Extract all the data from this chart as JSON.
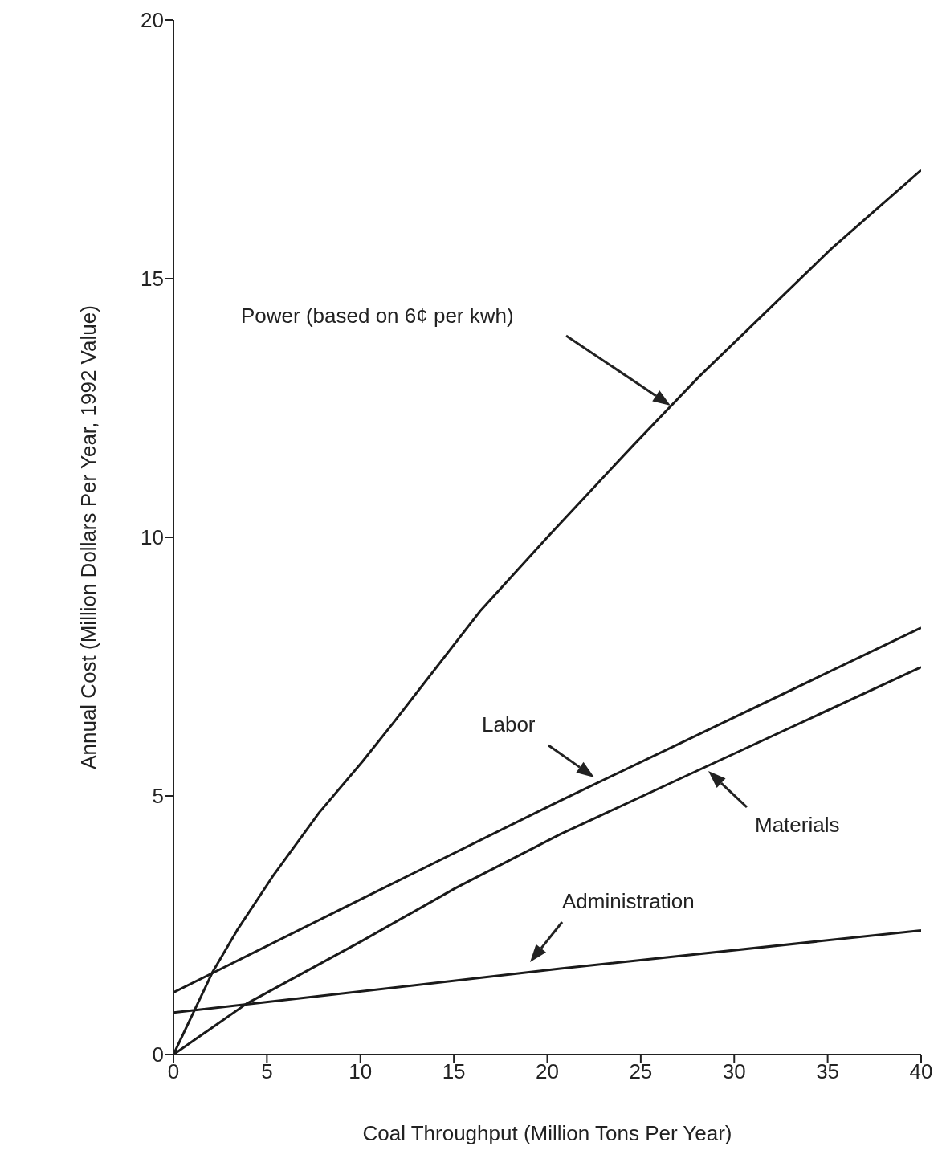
{
  "chart_data": {
    "type": "line",
    "xlabel": "Coal Throughput (Million Tons Per Year)",
    "ylabel": "Annual Cost (Million Dollars Per Year, 1992 Value)",
    "xlim": [
      0,
      40
    ],
    "xticks": [
      0,
      5,
      10,
      15,
      20,
      25,
      30,
      35,
      40
    ],
    "ylim": [
      0,
      20
    ],
    "yticks": [
      0,
      5,
      10,
      15,
      20
    ],
    "marker": "none",
    "line_style": "solid",
    "series": [
      {
        "color": "#1a1a1a",
        "x": [
          0,
          2.1,
          3.4,
          5.3,
          7.8,
          10.1,
          11.8,
          16.4,
          20,
          24.6,
          28.1,
          35.2,
          40
        ],
        "values": [
          0,
          1.6,
          2.4,
          3.44,
          4.68,
          5.66,
          6.43,
          8.57,
          10.0,
          11.78,
          13.1,
          15.58,
          17.1
        ]
      },
      {
        "color": "#1a1a1a",
        "x": [
          0,
          9.9,
          20.7,
          40
        ],
        "values": [
          1.2,
          2.98,
          4.91,
          8.25
        ]
      },
      {
        "color": "#1a1a1a",
        "x": [
          0,
          3.9,
          10.1,
          15.1,
          20.7,
          27.5,
          40
        ],
        "values": [
          0,
          0.98,
          2.2,
          3.22,
          4.26,
          5.4,
          7.49
        ]
      },
      {
        "color": "#1a1a1a",
        "x": [
          0,
          20.7,
          40
        ],
        "values": [
          0.81,
          1.66,
          2.4
        ]
      }
    ],
    "annotations": [
      "Power (based on 6¢ per kwh)",
      "Labor",
      "Materials",
      "Administration"
    ]
  }
}
